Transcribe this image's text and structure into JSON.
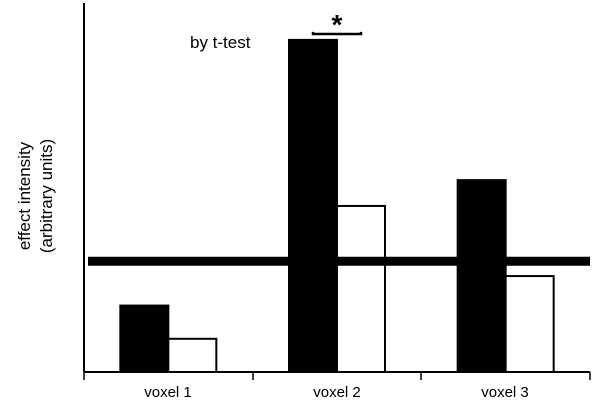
{
  "chart_data": {
    "type": "bar",
    "title": "",
    "xlabel": "",
    "ylabel_lines": [
      "effect intensity",
      "(arbitrary units)"
    ],
    "categories": [
      "voxel 1",
      "voxel 2",
      "voxel 3"
    ],
    "ylim": [
      0,
      100
    ],
    "series": [
      {
        "fill": "#000000",
        "values": [
          18,
          90,
          52
        ]
      },
      {
        "fill": "#ffffff",
        "values": [
          9,
          45,
          26
        ]
      }
    ],
    "threshold": 30,
    "annotation": {
      "text": "by t-test",
      "significance_marker": "*",
      "category_index": 1
    },
    "grid": false,
    "legend": "none"
  }
}
